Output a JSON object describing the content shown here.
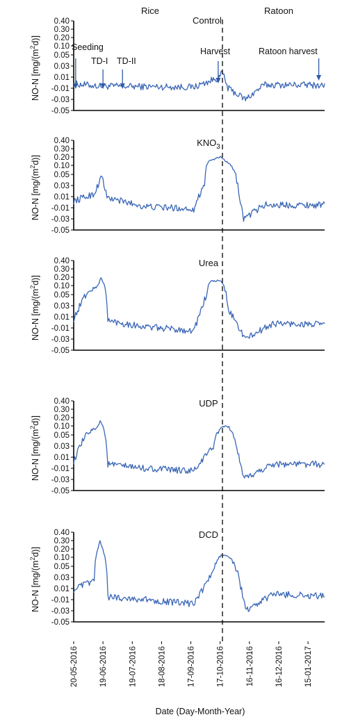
{
  "header": {
    "rice_label": "Rice",
    "ratoon_label": "Ratoon"
  },
  "annotations": {
    "seeding": "Seeding",
    "td1": "TD-I",
    "td2": "TD-II",
    "harvest": "Harvest",
    "ratoon_harvest": "Ratoon harvest"
  },
  "x_axis": {
    "label": "Date (Day-Month-Year)",
    "range": [
      "2016-05-20",
      "2017-02-01"
    ],
    "ticks": [
      "20-05-2016",
      "19-06-2016",
      "19-07-2016",
      "18-08-2016",
      "17-09-2016",
      "17-10-2016",
      "16-11-2016",
      "16-12-2016",
      "15-01-2017"
    ],
    "harvest_date": "2016-10-17"
  },
  "y_axis": {
    "label_main": "NO-N [mg/(m",
    "label_sup": "2",
    "label_end": "d)]",
    "ticks": [
      "0.40",
      "0.30",
      "0.20",
      "0.10",
      "0.05",
      "0.03",
      "0.01",
      "-0.01",
      "-0.03",
      "-0.05"
    ],
    "scale": "piecewise: 0.05 to 0.40 compressed above break"
  },
  "events": {
    "seeding_date": "2016-05-22",
    "td1_date": "2016-06-19",
    "td2_date": "2016-07-09",
    "harvest_date": "2016-10-15",
    "ratoon_harvest_date": "2017-01-26"
  },
  "colors": {
    "series": "#3a66b5",
    "axis": "#000000"
  },
  "chart_data": [
    {
      "type": "line",
      "title": "Control",
      "series": [
        {
          "name": "Control",
          "x_start": "2016-05-20",
          "x_end": "2017-02-01",
          "key_points": [
            [
              "2016-05-20",
              -0.002
            ],
            [
              "2016-06-15",
              -0.006
            ],
            [
              "2016-08-01",
              -0.007
            ],
            [
              "2016-09-20",
              -0.008
            ],
            [
              "2016-10-17",
              0.01
            ],
            [
              "2016-10-19",
              0.02
            ],
            [
              "2016-10-25",
              -0.01
            ],
            [
              "2016-11-12",
              -0.03
            ],
            [
              "2016-12-01",
              -0.004
            ],
            [
              "2017-01-15",
              -0.004
            ],
            [
              "2017-02-01",
              -0.005
            ]
          ]
        }
      ],
      "ylim": [
        -0.05,
        0.4
      ]
    },
    {
      "type": "line",
      "title": "KNO3",
      "series": [
        {
          "name": "KNO3",
          "x_start": "2016-05-20",
          "x_end": "2017-02-01",
          "key_points": [
            [
              "2016-05-20",
              0.002
            ],
            [
              "2016-06-10",
              0.015
            ],
            [
              "2016-06-18",
              0.048
            ],
            [
              "2016-06-23",
              0.008
            ],
            [
              "2016-08-01",
              -0.008
            ],
            [
              "2016-09-20",
              -0.012
            ],
            [
              "2016-10-01",
              0.035
            ],
            [
              "2016-10-05",
              0.15
            ],
            [
              "2016-10-17",
              0.2
            ],
            [
              "2016-10-25",
              0.13
            ],
            [
              "2016-11-10",
              -0.03
            ],
            [
              "2016-12-01",
              -0.005
            ],
            [
              "2017-02-01",
              -0.005
            ]
          ]
        }
      ],
      "ylim": [
        -0.05,
        0.4
      ]
    },
    {
      "type": "line",
      "title": "Urea",
      "series": [
        {
          "name": "Urea",
          "x_start": "2016-05-20",
          "x_end": "2017-02-01",
          "key_points": [
            [
              "2016-05-20",
              0.006
            ],
            [
              "2016-06-14",
              0.1
            ],
            [
              "2016-06-17",
              0.2
            ],
            [
              "2016-06-24",
              0.003
            ],
            [
              "2016-08-01",
              -0.008
            ],
            [
              "2016-09-20",
              -0.015
            ],
            [
              "2016-10-03",
              0.05
            ],
            [
              "2016-10-07",
              0.15
            ],
            [
              "2016-10-17",
              0.16
            ],
            [
              "2016-10-25",
              0.025
            ],
            [
              "2016-11-12",
              -0.03
            ],
            [
              "2016-12-10",
              -0.002
            ],
            [
              "2017-02-01",
              -0.004
            ]
          ]
        }
      ],
      "ylim": [
        -0.05,
        0.4
      ]
    },
    {
      "type": "line",
      "title": "UDP",
      "series": [
        {
          "name": "UDP",
          "x_start": "2016-05-20",
          "x_end": "2017-02-01",
          "key_points": [
            [
              "2016-05-20",
              0.003
            ],
            [
              "2016-06-14",
              0.1
            ],
            [
              "2016-06-16",
              0.16
            ],
            [
              "2016-06-24",
              -0.003
            ],
            [
              "2016-08-01",
              -0.01
            ],
            [
              "2016-09-20",
              -0.015
            ],
            [
              "2016-10-10",
              0.03
            ],
            [
              "2016-10-17",
              0.08
            ],
            [
              "2016-10-25",
              0.1
            ],
            [
              "2016-11-10",
              -0.03
            ],
            [
              "2016-12-10",
              -0.002
            ],
            [
              "2017-02-01",
              -0.003
            ]
          ]
        }
      ],
      "ylim": [
        -0.05,
        0.4
      ]
    },
    {
      "type": "line",
      "title": "DCD",
      "series": [
        {
          "name": "DCD",
          "x_start": "2016-05-20",
          "x_end": "2017-02-01",
          "key_points": [
            [
              "2016-05-20",
              0.008
            ],
            [
              "2016-06-10",
              0.025
            ],
            [
              "2016-06-16",
              0.3
            ],
            [
              "2016-06-24",
              -0.005
            ],
            [
              "2016-08-01",
              -0.01
            ],
            [
              "2016-09-20",
              -0.018
            ],
            [
              "2016-10-10",
              0.04
            ],
            [
              "2016-10-19",
              0.13
            ],
            [
              "2016-10-25",
              0.11
            ],
            [
              "2016-11-13",
              -0.03
            ],
            [
              "2016-12-10",
              0.0
            ],
            [
              "2017-02-01",
              -0.004
            ]
          ]
        }
      ],
      "ylim": [
        -0.05,
        0.4
      ]
    }
  ]
}
